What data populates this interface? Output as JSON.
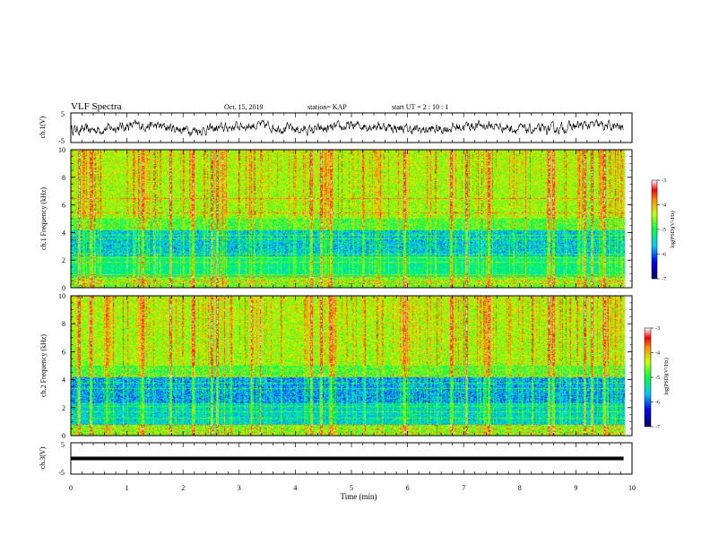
{
  "header": {
    "title": "VLF Spectra",
    "date": "Oct. 15, 2019",
    "station": "station= KAP",
    "start": "start  UT =   2  : 10 : 1"
  },
  "chart_data": [
    {
      "type": "line",
      "name": "ch1-voltage",
      "ylabel": "ch.1(V)",
      "ylim": [
        -5,
        5
      ],
      "yticks": [
        "5",
        "-5"
      ],
      "xlim": [
        0,
        10
      ],
      "note": "dense noise-like waveform, roughly within -2.5..+2.5 V"
    },
    {
      "type": "heatmap",
      "name": "ch1-spectrogram",
      "ylabel": "ch.1 Frequency (kHz)",
      "ylim": [
        0,
        10
      ],
      "yticks": [
        "0",
        "2",
        "4",
        "6",
        "8",
        "10"
      ],
      "xlim": [
        0,
        10
      ],
      "colorbar": {
        "label": "log(PSD)(V²/Hz)",
        "range": [
          -7,
          -3
        ],
        "ticks": [
          "-3",
          "-4",
          "-5",
          "-6",
          "-7"
        ]
      },
      "features": {
        "strong_impulse_minutes": [
          0.14,
          0.35,
          1.27,
          1.78,
          2.17,
          2.5,
          2.6,
          4.28,
          4.45,
          4.63,
          5.95,
          6.78,
          7.05,
          7.45,
          8.52,
          8.6,
          9.15,
          9.28,
          9.5
        ],
        "horizontal_lines_khz": [
          0.3,
          0.55,
          0.8,
          1.0,
          1.9,
          2.2,
          2.45,
          3.55,
          3.8,
          5.45,
          6.5
        ]
      }
    },
    {
      "type": "heatmap",
      "name": "ch2-spectrogram",
      "ylabel": "ch.2 Frequency (kHz)",
      "ylim": [
        0,
        10
      ],
      "yticks": [
        "0",
        "2",
        "4",
        "6",
        "8",
        "10"
      ],
      "xlim": [
        0,
        10
      ],
      "colorbar": {
        "label": "log(PSD)(V²/Hz)",
        "range": [
          -7,
          -3
        ],
        "ticks": [
          "-3",
          "-4",
          "-5",
          "-6",
          "-7"
        ]
      },
      "features": {
        "strong_impulse_minutes": [
          0.14,
          0.35,
          1.27,
          1.78,
          2.17,
          2.5,
          2.6,
          4.28,
          4.45,
          4.63,
          5.95,
          6.78,
          7.05,
          7.45,
          8.52,
          8.6,
          9.15,
          9.28,
          9.5
        ],
        "horizontal_lines_khz": [
          0.25,
          0.5,
          0.75,
          1.3,
          1.7,
          2.1,
          2.3,
          3.4,
          3.8,
          4.3
        ]
      }
    },
    {
      "type": "line",
      "name": "ch3-voltage",
      "ylabel": "ch.3(V)",
      "ylim": [
        -5,
        5
      ],
      "yticks": [
        "5",
        "-5"
      ],
      "xlim": [
        0,
        10
      ],
      "series": [
        {
          "x": [
            0,
            9.85
          ],
          "y": [
            0,
            0
          ]
        }
      ]
    }
  ],
  "xaxis": {
    "label": "Time  (min)",
    "ticks": [
      "0",
      "1",
      "2",
      "3",
      "4",
      "5",
      "6",
      "7",
      "8",
      "9",
      "10"
    ]
  },
  "colors": {
    "colormap": [
      "#000066",
      "#0000ff",
      "#00ffff",
      "#00ff00",
      "#ffff00",
      "#ff0000",
      "#ffffff"
    ]
  }
}
